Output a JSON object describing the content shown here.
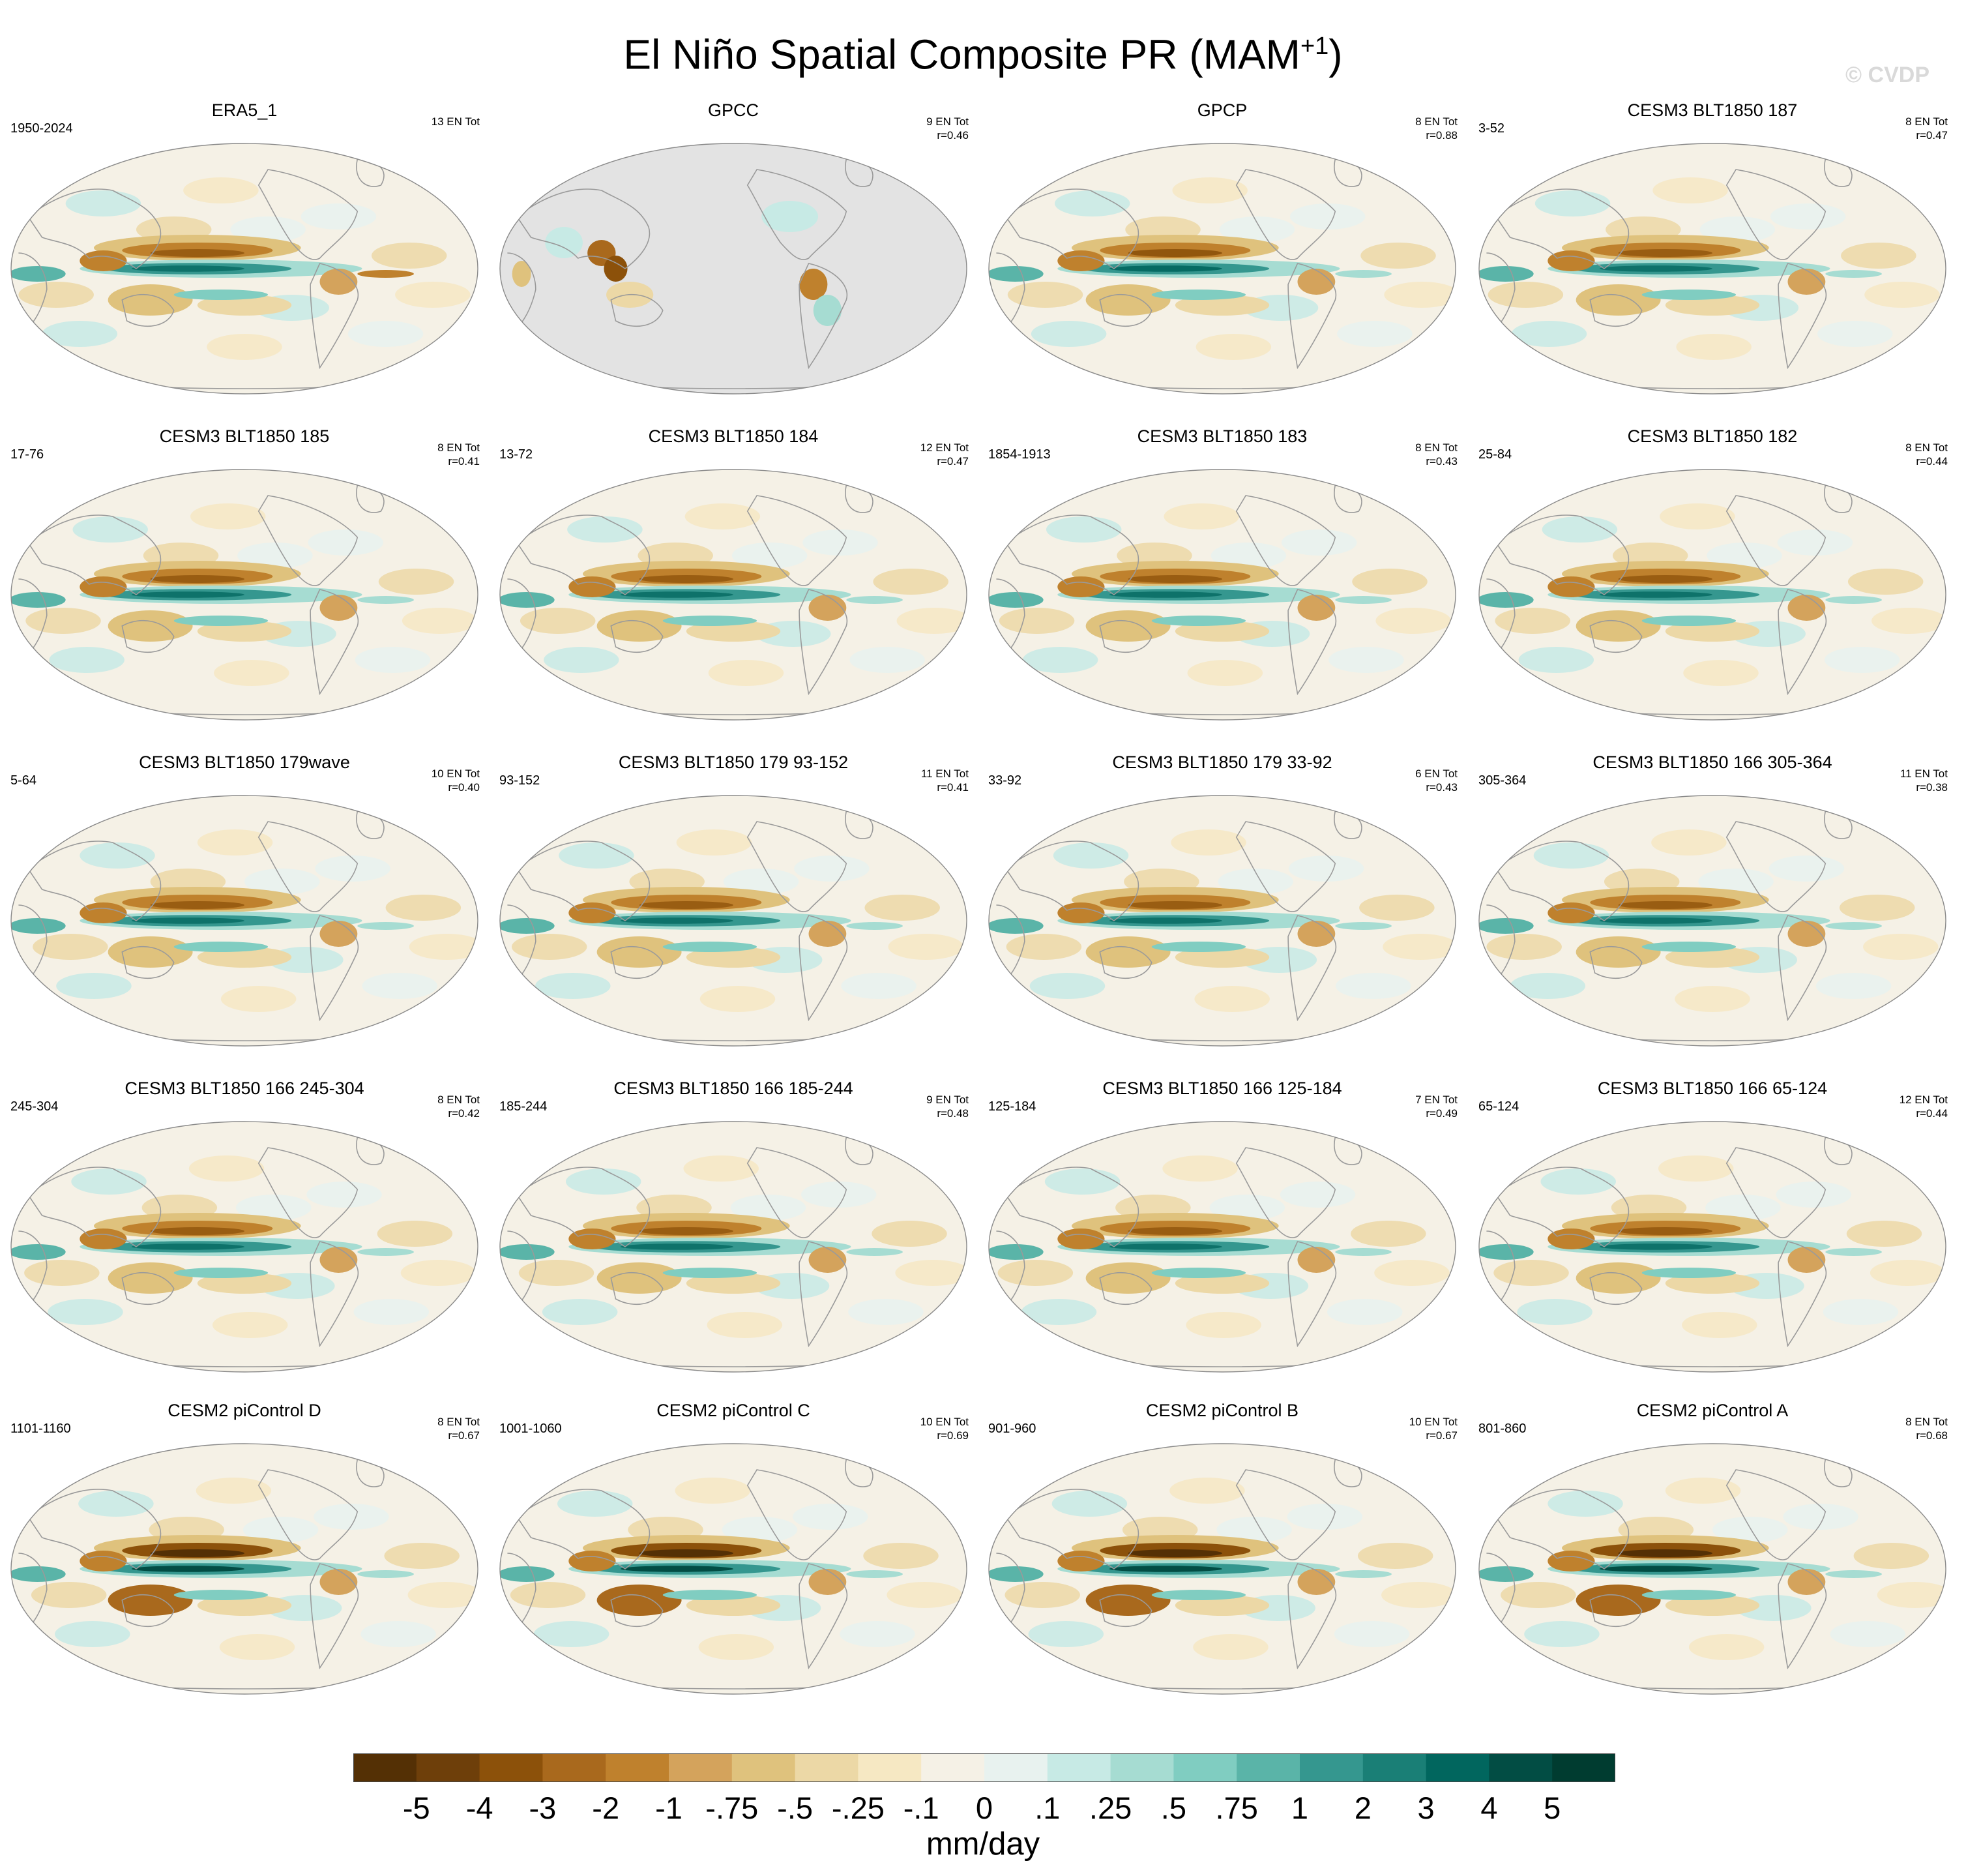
{
  "figure": {
    "title_main": "El Niño Spatial Composite PR (MAM",
    "title_sup": "+1",
    "title_close": ")",
    "copyright": "© CVDP",
    "units": "mm/day"
  },
  "colors": {
    "background": "#ffffff",
    "missing_land": "#e3e3e3",
    "coast": "#9a9a9a"
  },
  "panels": [
    {
      "title": "ERA5_1",
      "years": "1950-2024",
      "stats": [
        "13 EN Tot"
      ],
      "pattern": "obs"
    },
    {
      "title": "GPCC",
      "years": "",
      "stats": [
        "9 EN Tot",
        "r=0.46"
      ],
      "pattern": "land_only"
    },
    {
      "title": "GPCP",
      "years": "",
      "stats": [
        "8 EN Tot",
        "r=0.88"
      ],
      "pattern": "obs_strong"
    },
    {
      "title": "CESM3 BLT1850 187",
      "years": "3-52",
      "stats": [
        "8 EN Tot",
        "r=0.47"
      ],
      "pattern": "model"
    },
    {
      "title": "CESM3 BLT1850 185",
      "years": "17-76",
      "stats": [
        "8 EN Tot",
        "r=0.41"
      ],
      "pattern": "model"
    },
    {
      "title": "CESM3 BLT1850 184",
      "years": "13-72",
      "stats": [
        "12 EN Tot",
        "r=0.47"
      ],
      "pattern": "model"
    },
    {
      "title": "CESM3 BLT1850 183",
      "years": "1854-1913",
      "stats": [
        "8 EN Tot",
        "r=0.43"
      ],
      "pattern": "model"
    },
    {
      "title": "CESM3 BLT1850 182",
      "years": "25-84",
      "stats": [
        "8 EN Tot",
        "r=0.44"
      ],
      "pattern": "model"
    },
    {
      "title": "CESM3 BLT1850 179wave",
      "years": "5-64",
      "stats": [
        "10 EN Tot",
        "r=0.40"
      ],
      "pattern": "model"
    },
    {
      "title": "CESM3 BLT1850 179 93-152",
      "years": "93-152",
      "stats": [
        "11 EN Tot",
        "r=0.41"
      ],
      "pattern": "model"
    },
    {
      "title": "CESM3 BLT1850 179 33-92",
      "years": "33-92",
      "stats": [
        "6 EN Tot",
        "r=0.43"
      ],
      "pattern": "model"
    },
    {
      "title": "CESM3 BLT1850 166 305-364",
      "years": "305-364",
      "stats": [
        "11 EN Tot",
        "r=0.38"
      ],
      "pattern": "model"
    },
    {
      "title": "CESM3 BLT1850 166 245-304",
      "years": "245-304",
      "stats": [
        "8 EN Tot",
        "r=0.42"
      ],
      "pattern": "model"
    },
    {
      "title": "CESM3 BLT1850 166 185-244",
      "years": "185-244",
      "stats": [
        "9 EN Tot",
        "r=0.48"
      ],
      "pattern": "model"
    },
    {
      "title": "CESM3 BLT1850 166 125-184",
      "years": "125-184",
      "stats": [
        "7 EN Tot",
        "r=0.49"
      ],
      "pattern": "model"
    },
    {
      "title": "CESM3 BLT1850 166 65-124",
      "years": "65-124",
      "stats": [
        "12 EN Tot",
        "r=0.44"
      ],
      "pattern": "model"
    },
    {
      "title": "CESM2 piControl D",
      "years": "1101-1160",
      "stats": [
        "8 EN Tot",
        "r=0.67"
      ],
      "pattern": "cesm2"
    },
    {
      "title": "CESM2 piControl C",
      "years": "1001-1060",
      "stats": [
        "10 EN Tot",
        "r=0.69"
      ],
      "pattern": "cesm2"
    },
    {
      "title": "CESM2 piControl B",
      "years": "901-960",
      "stats": [
        "10 EN Tot",
        "r=0.67"
      ],
      "pattern": "cesm2"
    },
    {
      "title": "CESM2 piControl A",
      "years": "801-860",
      "stats": [
        "8 EN Tot",
        "r=0.68"
      ],
      "pattern": "cesm2"
    }
  ],
  "colorbar": {
    "labels": [
      "-5",
      "-4",
      "-3",
      "-2",
      "-1",
      "-.75",
      "-.5",
      "-.25",
      "-.1",
      "0",
      ".1",
      ".25",
      ".5",
      ".75",
      "1",
      "2",
      "3",
      "4",
      "5"
    ],
    "colors": [
      "#543005",
      "#6e3f0a",
      "#8c510a",
      "#a9691d",
      "#bf812d",
      "#d4a35c",
      "#dfc27d",
      "#ecd8a6",
      "#f6e8c3",
      "#f5f1e6",
      "#e8f2ef",
      "#c7eae5",
      "#a6dcd2",
      "#80cdc1",
      "#5ab4a8",
      "#35978f",
      "#1a7f76",
      "#01665e",
      "#024d44",
      "#003c30"
    ]
  }
}
